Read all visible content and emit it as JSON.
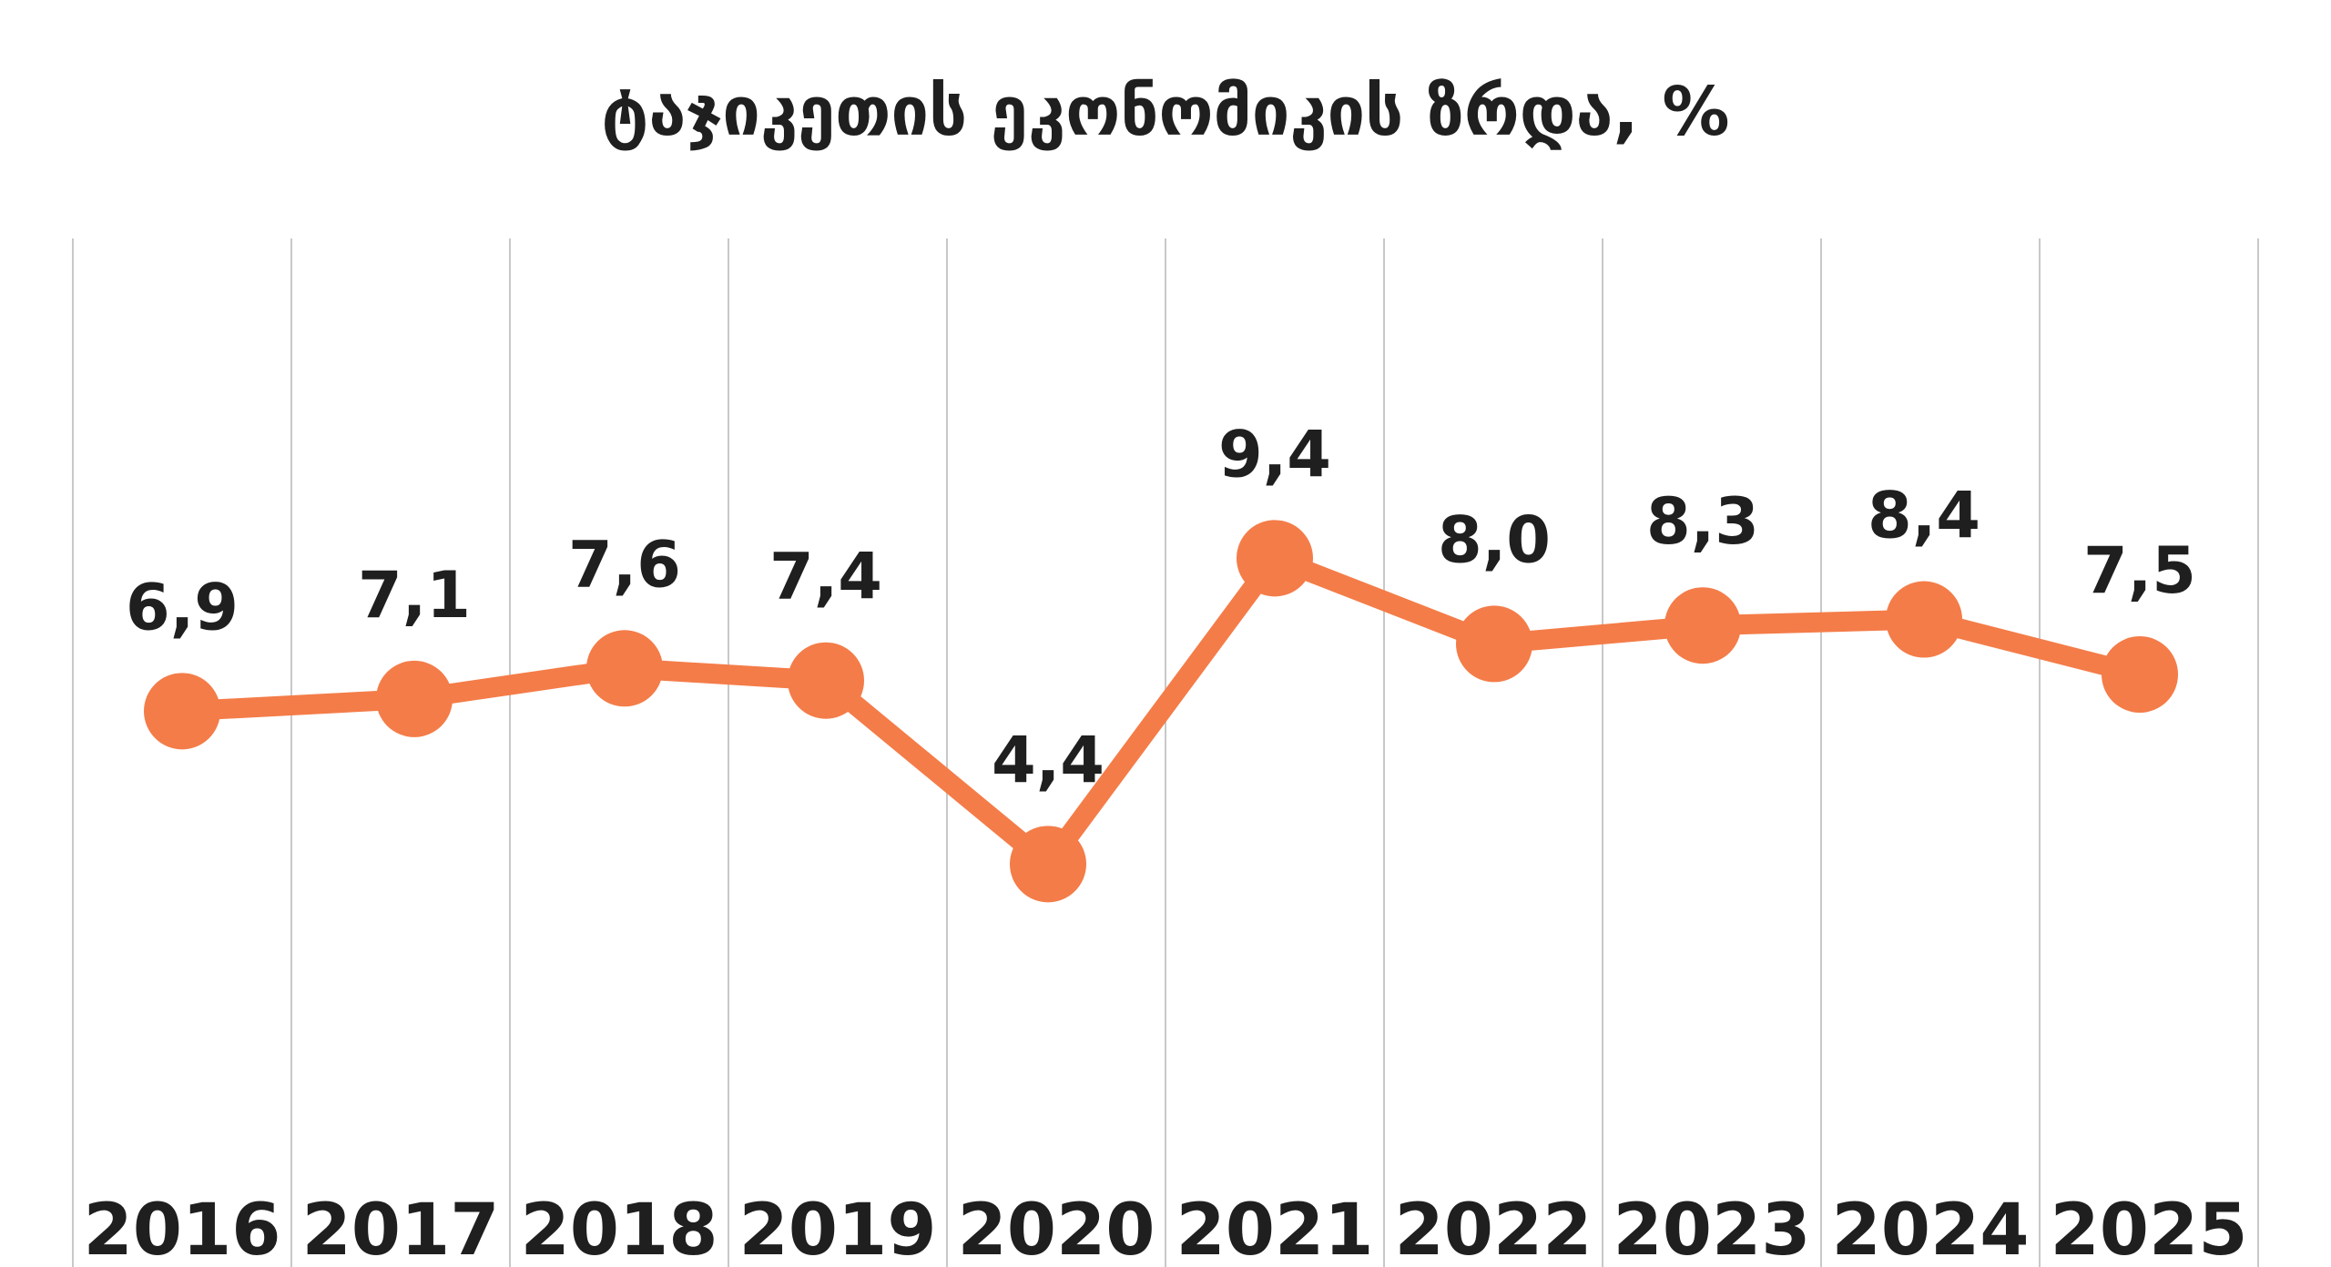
{
  "chart_data": {
    "type": "line",
    "title": "ტაჯიკეთის ეკონომიკის ზრდა, %",
    "categories": [
      "2016",
      "2017",
      "2018",
      "2019",
      "2020",
      "2021",
      "2022",
      "2023",
      "2024",
      "2025"
    ],
    "series": [
      {
        "name": "ტაჯიკეთის ეკონომიკის ზრდა, %",
        "values": [
          6.9,
          7.1,
          7.6,
          7.4,
          4.4,
          9.4,
          8.0,
          8.3,
          8.4,
          7.5
        ],
        "labels": [
          "6,9",
          "7,1",
          "7,6",
          "7,4",
          "4,4",
          "9,4",
          "8,0",
          "8,3",
          "8,4",
          "7,5"
        ]
      }
    ],
    "xlabel": "",
    "ylabel": "",
    "ylim": [
      0,
      10
    ],
    "grid": "vertical",
    "legend": "none",
    "colors": {
      "line": "#f47c48",
      "grid": "#c8c8c8",
      "text": "#1f1f1f"
    }
  }
}
